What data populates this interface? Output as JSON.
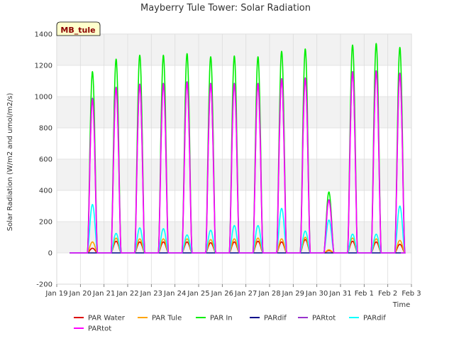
{
  "chart_data": {
    "type": "line",
    "title": "Mayberry Tule Tower: Solar Radiation",
    "site_badge": "MB_tule",
    "xlabel": "Time",
    "ylabel": "Solar Radiation (W/m2 and umol/m2/s)",
    "ylim": [
      -200,
      1400
    ],
    "yticks": [
      -200,
      0,
      200,
      400,
      600,
      800,
      1000,
      1200,
      1400
    ],
    "xlim": [
      0,
      15
    ],
    "xticks": [
      {
        "x": 0,
        "label": "Jan 19"
      },
      {
        "x": 1,
        "label": "Jan 20"
      },
      {
        "x": 2,
        "label": "Jan 21"
      },
      {
        "x": 3,
        "label": "Jan 22"
      },
      {
        "x": 4,
        "label": "Jan 23"
      },
      {
        "x": 5,
        "label": "Jan 24"
      },
      {
        "x": 6,
        "label": "Jan 25"
      },
      {
        "x": 7,
        "label": "Jan 26"
      },
      {
        "x": 8,
        "label": "Jan 27"
      },
      {
        "x": 9,
        "label": "Jan 28"
      },
      {
        "x": 10,
        "label": "Jan 29"
      },
      {
        "x": 11,
        "label": "Jan 30"
      },
      {
        "x": 12,
        "label": "Jan 31"
      },
      {
        "x": 13,
        "label": "Feb 1"
      },
      {
        "x": 14,
        "label": "Feb 2"
      },
      {
        "x": 15,
        "label": "Feb 3"
      }
    ],
    "grid": true,
    "legend_position": "bottom",
    "daylight": {
      "sunrise_frac": 0.3,
      "sunset_frac": 0.72
    },
    "days": [
      "Jan 20",
      "Jan 21",
      "Jan 22",
      "Jan 23",
      "Jan 24",
      "Jan 25",
      "Jan 26",
      "Jan 27",
      "Jan 28",
      "Jan 29",
      "Jan 30",
      "Jan 31",
      "Feb 1",
      "Feb 2"
    ],
    "series": [
      {
        "name": "PAR Water",
        "color": "#dd0000",
        "daily_peaks": [
          30,
          75,
          70,
          70,
          70,
          65,
          70,
          75,
          70,
          85,
          15,
          75,
          70,
          55
        ]
      },
      {
        "name": "PAR Tule",
        "color": "#ffa500",
        "daily_peaks": [
          70,
          95,
          90,
          90,
          90,
          85,
          90,
          95,
          90,
          100,
          20,
          95,
          90,
          80
        ]
      },
      {
        "name": "PAR In",
        "color": "#00ee00",
        "daily_peaks": [
          1160,
          1240,
          1265,
          1265,
          1275,
          1255,
          1260,
          1255,
          1290,
          1305,
          390,
          1330,
          1340,
          1315
        ]
      },
      {
        "name": "PARdif",
        "color": "#00008b",
        "daily_peaks": [
          0,
          0,
          0,
          0,
          0,
          0,
          0,
          0,
          0,
          0,
          0,
          0,
          0,
          0
        ]
      },
      {
        "name": "PARtot",
        "color": "#9933cc",
        "daily_peaks": [
          990,
          1060,
          1080,
          1085,
          1095,
          1085,
          1085,
          1085,
          1115,
          1120,
          340,
          1160,
          1165,
          1150
        ]
      },
      {
        "name": "PARdif",
        "color": "#00ffff",
        "daily_peaks": [
          310,
          125,
          160,
          155,
          115,
          145,
          175,
          175,
          285,
          140,
          210,
          120,
          120,
          300
        ]
      },
      {
        "name": "PARtot",
        "color": "#ff00ff",
        "daily_peaks": [
          980,
          1055,
          1075,
          1080,
          1090,
          1080,
          1080,
          1080,
          1110,
          1115,
          335,
          1155,
          1160,
          1145
        ]
      }
    ]
  }
}
